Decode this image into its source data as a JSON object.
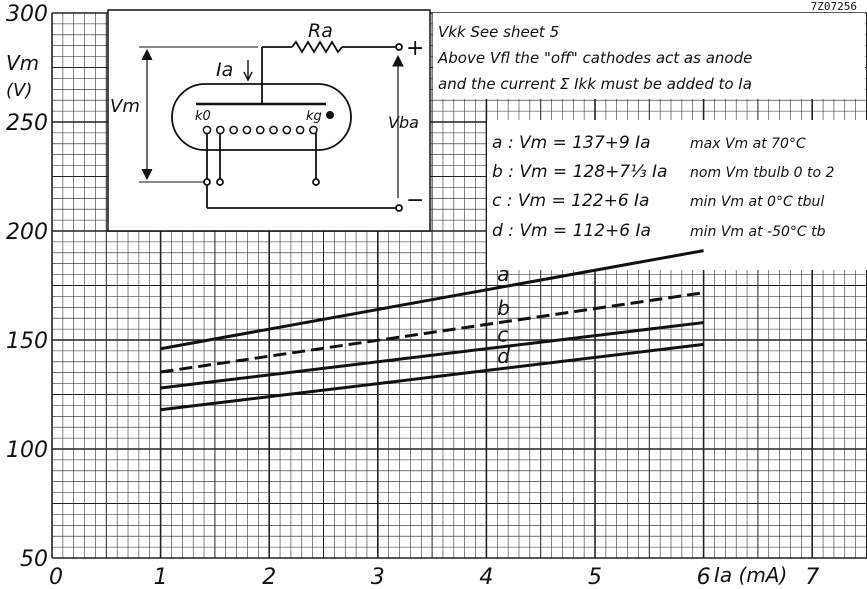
{
  "sheet_code": "7Z07256",
  "chart_data": {
    "type": "line",
    "ylabel_symbol": "Vm",
    "ylabel_unit": "(V)",
    "xlabel": "Ia (mA)",
    "xlim": [
      0,
      7
    ],
    "ylim": [
      50,
      300
    ],
    "x_ticks": [
      "0",
      "1",
      "2",
      "3",
      "4",
      "5",
      "6",
      "7"
    ],
    "y_ticks": [
      "50",
      "100",
      "150",
      "200",
      "250",
      "300"
    ],
    "grid": true,
    "series": [
      {
        "name": "a",
        "style": "solid",
        "x": [
          1,
          6
        ],
        "y": [
          146,
          191
        ]
      },
      {
        "name": "b",
        "style": "dashed",
        "x": [
          1,
          6
        ],
        "y": [
          135.3,
          171.7
        ]
      },
      {
        "name": "c",
        "style": "solid",
        "x": [
          1,
          6
        ],
        "y": [
          128,
          158
        ]
      },
      {
        "name": "d",
        "style": "solid",
        "x": [
          1,
          6
        ],
        "y": [
          118,
          148
        ]
      }
    ],
    "equations": [
      {
        "eq": "a : Vm = 137+9 Ia",
        "note": "max Vm at 70°C"
      },
      {
        "eq": "b : Vm = 128+7⅓ Ia",
        "note": "nom Vm tbulb 0 to 2"
      },
      {
        "eq": "c : Vm = 122+6 Ia",
        "note": "min Vm at 0°C tbul"
      },
      {
        "eq": "d : Vm = 112+6 Ia",
        "note": "min Vm at -50°C tb"
      }
    ],
    "notes": [
      "Vkk See sheet 5",
      "Above Vfl the \"off\" cathodes act as anode",
      "and the current Σ Ikk must be added to Ia"
    ],
    "circuit_labels": {
      "ra": "Ra",
      "ia": "Ia",
      "vm": "Vm",
      "vba": "Vba",
      "k0": "k0",
      "kg": "kg",
      "plus": "+",
      "minus": "−"
    }
  }
}
